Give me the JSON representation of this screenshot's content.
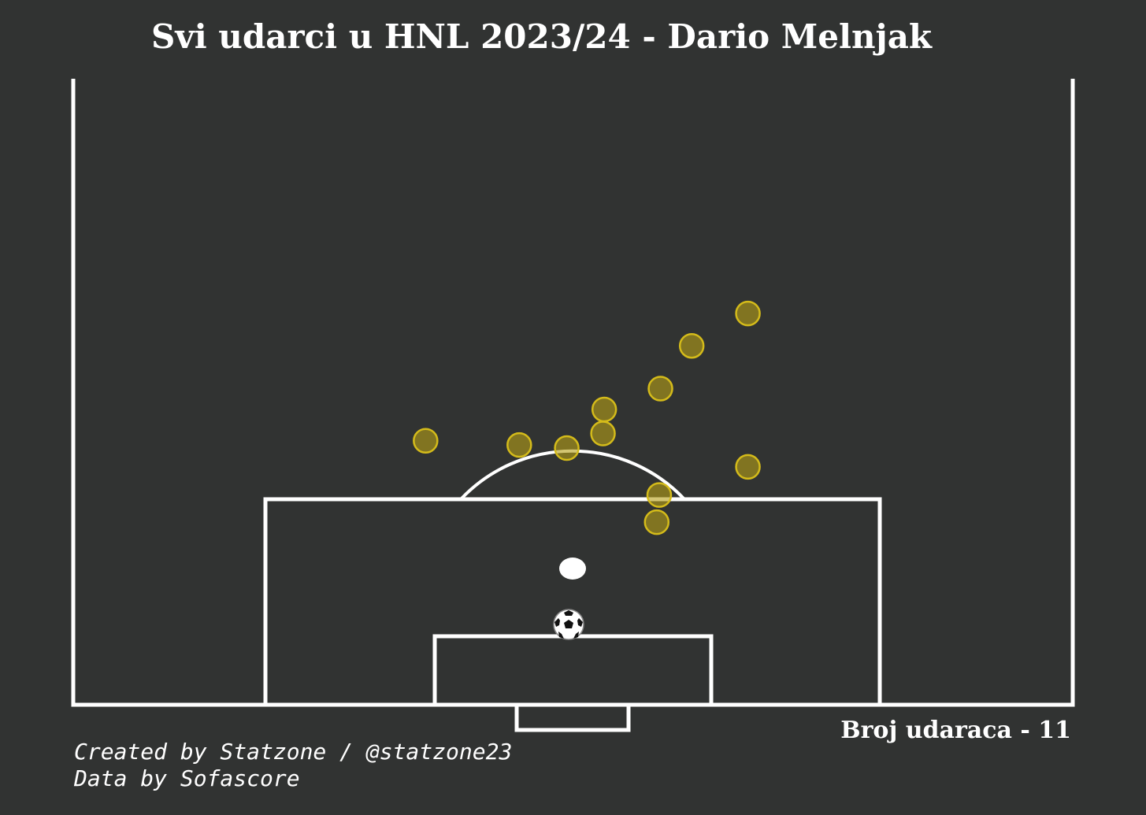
{
  "chart_data": {
    "type": "scatter",
    "title": "Svi udarci u HNL 2023/24 - Dario Melnjak",
    "pitch": "half-pitch, attacking goal at bottom",
    "marker_color": "#b8a016",
    "marker_outline": "#d4bb1a",
    "pitch_line_color": "#ffffff",
    "background": "#313332",
    "shot_count_label": "Broj udaraca - 11",
    "shots": [
      {
        "x": 54.0,
        "y": 37.5
      },
      {
        "x": 49.5,
        "y": 34.4
      },
      {
        "x": 47.0,
        "y": 30.3
      },
      {
        "x": 42.5,
        "y": 28.3
      },
      {
        "x": 42.4,
        "y": 26.0
      },
      {
        "x": 39.5,
        "y": 24.6
      },
      {
        "x": 35.7,
        "y": 24.9
      },
      {
        "x": 28.2,
        "y": 25.3
      },
      {
        "x": 54.0,
        "y": 22.8
      },
      {
        "x": 46.9,
        "y": 20.1
      },
      {
        "x": 46.7,
        "y": 17.5
      }
    ]
  },
  "credits": {
    "line1": "Created by Statzone / @statzone23",
    "line2": "Data by Sofascore"
  },
  "icons": {
    "ball": "football-icon"
  }
}
